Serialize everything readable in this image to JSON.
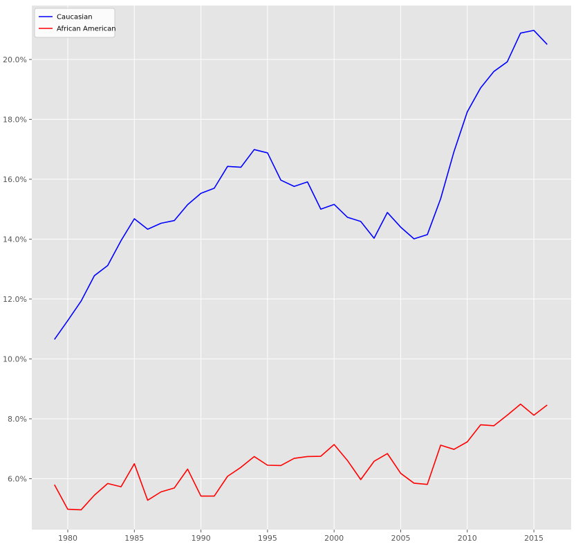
{
  "chart_data": {
    "type": "line",
    "title": "",
    "xlabel": "",
    "ylabel": "",
    "xlim": [
      1977.3,
      2017.8
    ],
    "ylim": [
      4.3,
      21.8
    ],
    "grid": true,
    "legend_position": "top-left",
    "x_ticks": [
      1980,
      1985,
      1990,
      1995,
      2000,
      2005,
      2010,
      2015
    ],
    "x_tick_labels": [
      "1980",
      "1985",
      "1990",
      "1995",
      "2000",
      "2005",
      "2010",
      "2015"
    ],
    "y_ticks": [
      6,
      8,
      10,
      12,
      14,
      16,
      18,
      20
    ],
    "y_tick_labels": [
      "6.0%",
      "8.0%",
      "10.0%",
      "12.0%",
      "14.0%",
      "16.0%",
      "18.0%",
      "20.0%"
    ],
    "x": [
      1979,
      1980,
      1981,
      1982,
      1983,
      1984,
      1985,
      1986,
      1987,
      1988,
      1989,
      1990,
      1991,
      1992,
      1993,
      1994,
      1995,
      1996,
      1997,
      1998,
      1999,
      2000,
      2001,
      2002,
      2003,
      2004,
      2005,
      2006,
      2007,
      2008,
      2009,
      2010,
      2011,
      2012,
      2013,
      2014,
      2015,
      2016
    ],
    "series": [
      {
        "name": "Caucasian",
        "color": "#0000ff",
        "values": [
          10.65,
          11.28,
          11.93,
          12.78,
          13.12,
          13.95,
          14.68,
          14.33,
          14.53,
          14.62,
          15.15,
          15.53,
          15.7,
          16.43,
          16.4,
          16.99,
          16.88,
          15.97,
          15.76,
          15.91,
          15.0,
          15.16,
          14.73,
          14.59,
          14.03,
          14.89,
          14.4,
          14.01,
          14.15,
          15.35,
          16.92,
          18.25,
          19.05,
          19.6,
          19.92,
          20.88,
          20.97,
          20.5
        ]
      },
      {
        "name": "African American",
        "color": "#ff0000",
        "values": [
          5.8,
          4.98,
          4.96,
          5.45,
          5.84,
          5.73,
          6.5,
          5.28,
          5.56,
          5.69,
          6.32,
          5.42,
          5.42,
          6.08,
          6.38,
          6.74,
          6.45,
          6.44,
          6.68,
          6.74,
          6.75,
          7.14,
          6.61,
          5.97,
          6.58,
          6.84,
          6.18,
          5.85,
          5.81,
          7.12,
          6.98,
          7.23,
          7.8,
          7.77,
          8.12,
          8.49,
          8.12,
          8.46
        ]
      }
    ]
  }
}
